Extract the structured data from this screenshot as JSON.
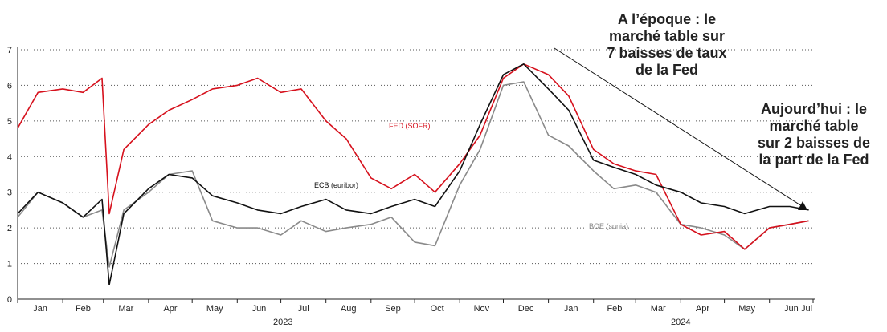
{
  "chart_data": {
    "type": "line",
    "title": "",
    "xlabel": "",
    "ylabel": "",
    "ylim": [
      0,
      7
    ],
    "yticks": [
      "0",
      "1",
      "2",
      "3",
      "4",
      "5",
      "6",
      "7"
    ],
    "months": [
      "Jan",
      "Feb",
      "Mar",
      "Apr",
      "May",
      "Jun",
      "Jul",
      "Aug",
      "Sep",
      "Oct",
      "Nov",
      "Dec",
      "Jan",
      "Feb",
      "Mar",
      "Apr",
      "May",
      "Jun",
      "Jul"
    ],
    "years": [
      "2023",
      "2024"
    ],
    "grid": "horizontal dotted",
    "x": [
      "2023-01-01",
      "2023-01-15",
      "2023-02-01",
      "2023-02-15",
      "2023-02-28",
      "2023-03-05",
      "2023-03-15",
      "2023-04-01",
      "2023-04-15",
      "2023-05-01",
      "2023-05-15",
      "2023-06-01",
      "2023-06-15",
      "2023-07-01",
      "2023-07-15",
      "2023-08-01",
      "2023-08-15",
      "2023-09-01",
      "2023-09-15",
      "2023-10-01",
      "2023-10-15",
      "2023-11-01",
      "2023-11-15",
      "2023-12-01",
      "2023-12-15",
      "2024-01-01",
      "2024-01-15",
      "2024-02-01",
      "2024-02-15",
      "2024-03-01",
      "2024-03-15",
      "2024-04-01",
      "2024-04-15",
      "2024-05-01",
      "2024-05-15",
      "2024-06-01",
      "2024-06-15",
      "2024-06-28"
    ],
    "series": [
      {
        "name": "FED (SOFR)",
        "color": "#d6111d",
        "values": [
          4.8,
          5.8,
          5.9,
          5.8,
          6.2,
          2.4,
          4.2,
          4.9,
          5.3,
          5.6,
          5.9,
          6.0,
          6.2,
          5.8,
          5.9,
          5.0,
          4.5,
          3.4,
          3.1,
          3.5,
          3.0,
          3.8,
          4.6,
          6.2,
          6.6,
          6.3,
          5.7,
          4.2,
          3.8,
          3.6,
          3.5,
          2.1,
          1.8,
          1.9,
          1.4,
          2.0,
          2.1,
          2.2
        ]
      },
      {
        "name": "ECB (euribor)",
        "color": "#111111",
        "values": [
          2.4,
          3.0,
          2.7,
          2.3,
          2.8,
          0.4,
          2.4,
          3.1,
          3.5,
          3.4,
          2.9,
          2.7,
          2.5,
          2.4,
          2.6,
          2.8,
          2.5,
          2.4,
          2.6,
          2.8,
          2.6,
          3.6,
          4.9,
          6.3,
          6.6,
          5.9,
          5.3,
          3.9,
          3.7,
          3.5,
          3.2,
          3.0,
          2.7,
          2.6,
          2.4,
          2.6,
          2.6,
          2.5
        ]
      },
      {
        "name": "BOE (sonia)",
        "color": "#8a8a8a",
        "values": [
          2.3,
          3.0,
          2.7,
          2.3,
          2.5,
          0.9,
          2.5,
          3.0,
          3.5,
          3.6,
          2.2,
          2.0,
          2.0,
          1.8,
          2.2,
          1.9,
          2.0,
          2.1,
          2.3,
          1.6,
          1.5,
          3.2,
          4.2,
          6.0,
          6.1,
          4.6,
          4.3,
          3.6,
          3.1,
          3.2,
          3.0,
          2.1,
          2.0,
          1.8,
          1.4,
          2.0,
          2.1,
          2.2
        ]
      }
    ],
    "annotations": {
      "past": [
        "A l’époque : le",
        "marché table sur",
        "7 baisses de taux",
        "de la Fed"
      ],
      "now": [
        "Aujourd’hui : le",
        "marché table",
        "sur 2 baisses de",
        "la part de la Fed"
      ]
    }
  }
}
